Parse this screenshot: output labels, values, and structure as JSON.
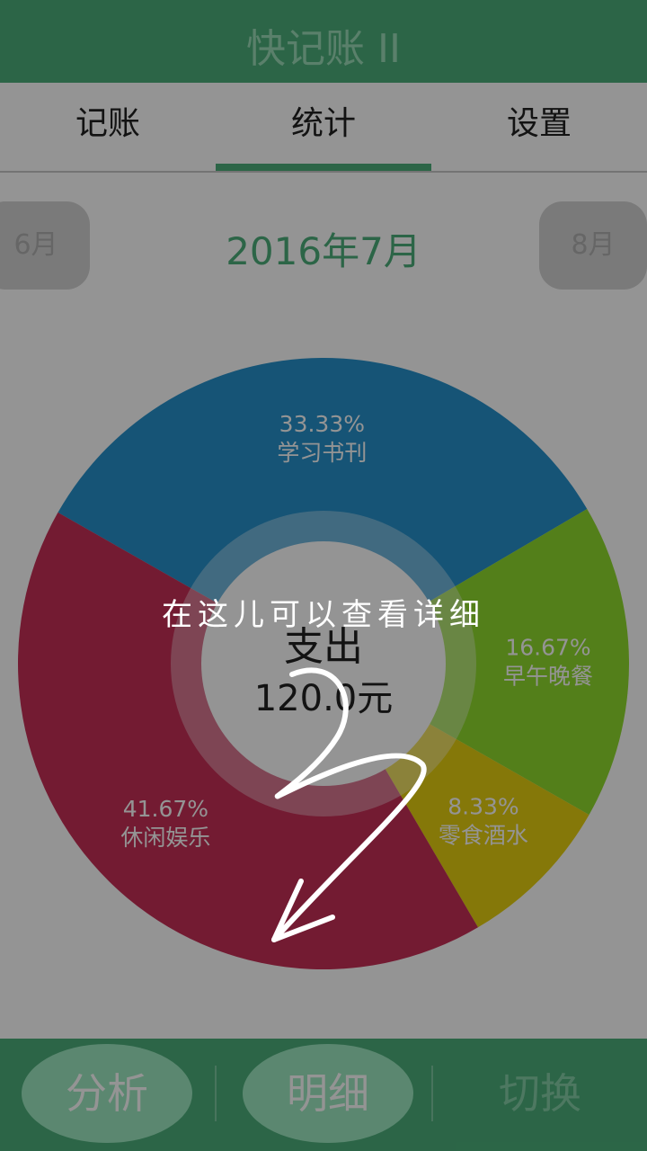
{
  "app": {
    "title": "快记账 II"
  },
  "tabs": [
    {
      "label": "记账"
    },
    {
      "label": "统计"
    },
    {
      "label": "设置"
    }
  ],
  "active_tab": 1,
  "month_nav": {
    "prev": "6月",
    "current": "2016年7月",
    "next": "8月"
  },
  "chart_data": {
    "type": "pie",
    "center_label": "支出",
    "center_value": "120.0元",
    "slices": [
      {
        "category": "学习书刊",
        "percent": 33.33,
        "label": "33.33%",
        "color": "#2691cb"
      },
      {
        "category": "早午晚餐",
        "percent": 16.67,
        "label": "16.67%",
        "color": "#8fdb2d"
      },
      {
        "category": "零食酒水",
        "percent": 8.33,
        "label": "8.33%",
        "color": "#e6cf11"
      },
      {
        "category": "休闲娱乐",
        "percent": 41.67,
        "label": "41.67%",
        "color": "#c72f57"
      }
    ]
  },
  "bottom_bar": {
    "analyze": "分析",
    "detail": "明细",
    "switch": "切换"
  },
  "guide": {
    "hint": "在这儿可以查看详细"
  },
  "colors": {
    "primary": "#4caf7a",
    "button": "#9ee8c1"
  }
}
